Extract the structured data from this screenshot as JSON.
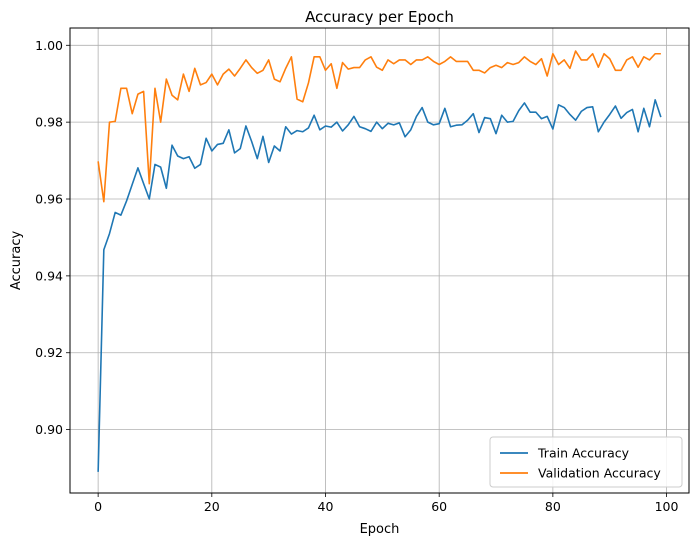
{
  "chart_data": {
    "type": "line",
    "title": "Accuracy per Epoch",
    "xlabel": "Epoch",
    "ylabel": "Accuracy",
    "xlim": [
      -4.95,
      103.95
    ],
    "ylim": [
      0.8835,
      1.0045
    ],
    "xticks": [
      0,
      20,
      40,
      60,
      80,
      100
    ],
    "yticks": [
      0.9,
      0.92,
      0.94,
      0.96,
      0.98,
      1.0
    ],
    "ytick_labels": [
      "0.90",
      "0.92",
      "0.94",
      "0.96",
      "0.98",
      "1.00"
    ],
    "grid": true,
    "legend": "lower-right",
    "series": [
      {
        "name": "Train Accuracy",
        "color": "#1f77b4",
        "values": [
          0.889,
          0.9468,
          0.951,
          0.9565,
          0.9558,
          0.9595,
          0.9638,
          0.9681,
          0.964,
          0.96,
          0.969,
          0.9683,
          0.9628,
          0.974,
          0.9712,
          0.9705,
          0.971,
          0.968,
          0.969,
          0.9758,
          0.9725,
          0.9742,
          0.9745,
          0.978,
          0.972,
          0.9731,
          0.979,
          0.975,
          0.9705,
          0.9763,
          0.9695,
          0.9738,
          0.9725,
          0.9788,
          0.9769,
          0.9778,
          0.9775,
          0.9785,
          0.9818,
          0.978,
          0.979,
          0.9787,
          0.98,
          0.9777,
          0.9793,
          0.9815,
          0.9788,
          0.9783,
          0.9776,
          0.98,
          0.9783,
          0.9797,
          0.9793,
          0.9798,
          0.9762,
          0.978,
          0.9815,
          0.9838,
          0.98,
          0.9793,
          0.9796,
          0.9836,
          0.9788,
          0.9792,
          0.9793,
          0.9805,
          0.9822,
          0.9773,
          0.9812,
          0.9809,
          0.977,
          0.9818,
          0.98,
          0.9802,
          0.983,
          0.985,
          0.9826,
          0.9826,
          0.9809,
          0.9815,
          0.9782,
          0.9845,
          0.9838,
          0.982,
          0.9805,
          0.9828,
          0.9838,
          0.984,
          0.9775,
          0.98,
          0.982,
          0.9842,
          0.981,
          0.9825,
          0.9833,
          0.9775,
          0.9836,
          0.9788,
          0.9858,
          0.9813
        ]
      },
      {
        "name": "Validation Accuracy",
        "color": "#ff7f0e",
        "values": [
          0.9698,
          0.9593,
          0.98,
          0.9802,
          0.9888,
          0.9888,
          0.9822,
          0.9873,
          0.988,
          0.964,
          0.9888,
          0.98,
          0.9912,
          0.987,
          0.9858,
          0.9925,
          0.988,
          0.994,
          0.9897,
          0.9903,
          0.9925,
          0.9897,
          0.9925,
          0.9938,
          0.992,
          0.994,
          0.9962,
          0.9942,
          0.9927,
          0.9935,
          0.9962,
          0.9912,
          0.9905,
          0.994,
          0.997,
          0.986,
          0.9853,
          0.9902,
          0.997,
          0.997,
          0.9935,
          0.9952,
          0.9888,
          0.9955,
          0.9938,
          0.9942,
          0.9942,
          0.9962,
          0.997,
          0.9943,
          0.9935,
          0.9962,
          0.9952,
          0.9962,
          0.9962,
          0.995,
          0.9962,
          0.9962,
          0.997,
          0.9958,
          0.995,
          0.9958,
          0.997,
          0.9958,
          0.9958,
          0.9958,
          0.9935,
          0.9935,
          0.9928,
          0.9942,
          0.9948,
          0.9942,
          0.9955,
          0.995,
          0.9955,
          0.997,
          0.9958,
          0.995,
          0.9965,
          0.992,
          0.9978,
          0.995,
          0.9962,
          0.994,
          0.9985,
          0.9962,
          0.9962,
          0.9978,
          0.9943,
          0.9978,
          0.9965,
          0.9935,
          0.9935,
          0.9962,
          0.997,
          0.9943,
          0.997,
          0.9962,
          0.9978,
          0.9978
        ]
      }
    ]
  }
}
